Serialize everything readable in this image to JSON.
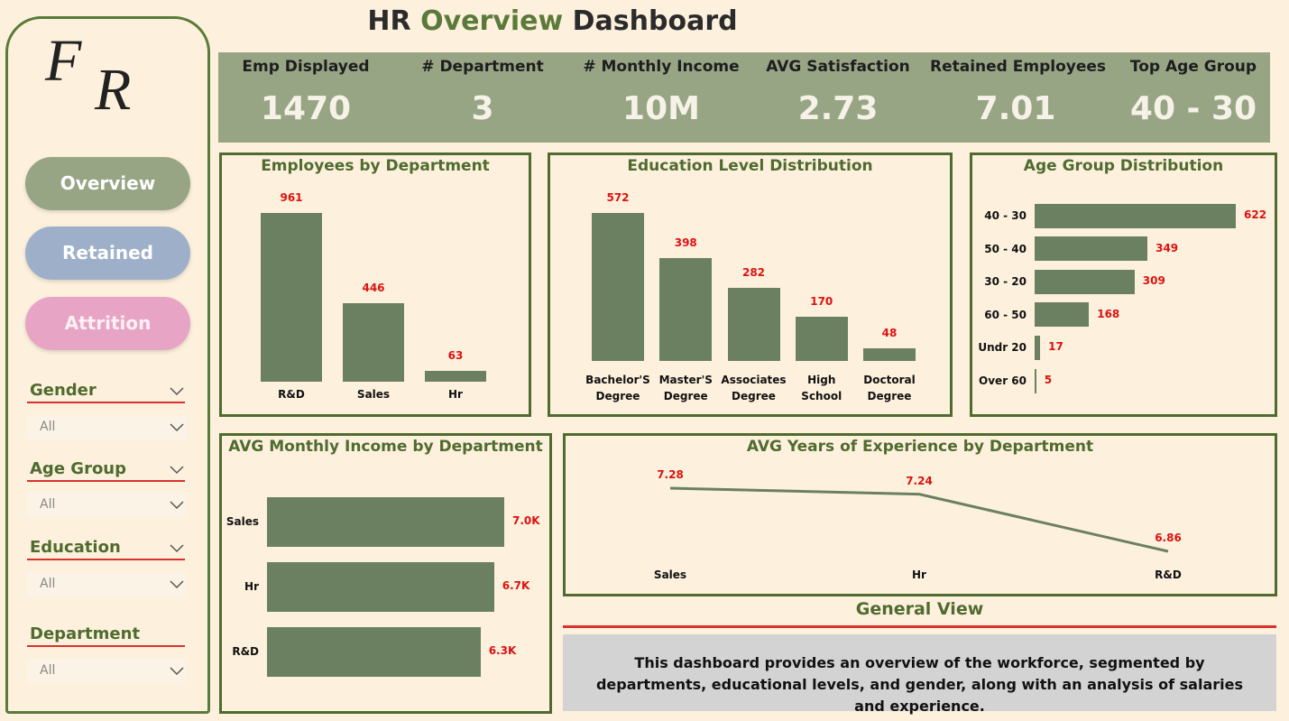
{
  "header": {
    "title_parts": [
      "HR",
      "Overview",
      "Dashboard"
    ]
  },
  "sidebar": {
    "logo": [
      "F",
      "R"
    ],
    "nav": [
      "Overview",
      "Retained",
      "Attrition"
    ],
    "filters": [
      {
        "label": "Gender",
        "selected": "All"
      },
      {
        "label": "Age Group",
        "selected": "All"
      },
      {
        "label": "Education",
        "selected": "All"
      },
      {
        "label": "Department",
        "selected": "All"
      }
    ]
  },
  "kpis": [
    {
      "label": "Emp Displayed",
      "value": 1470
    },
    {
      "label": "# Department",
      "value": 3
    },
    {
      "label": "# Monthly Income",
      "value": "10M"
    },
    {
      "label": "AVG Satisfaction",
      "value": 2.73
    },
    {
      "label": "Retained Employees",
      "value": 7.01
    },
    {
      "label": "Top Age Group",
      "value": "40 - 30"
    }
  ],
  "chart_data": [
    {
      "type": "bar",
      "title": "Employees by Department",
      "categories": [
        "R&D",
        "Sales",
        "Hr"
      ],
      "values": [
        961,
        446,
        63
      ],
      "color": "#6b8060"
    },
    {
      "type": "bar",
      "title": "Education Level Distribution",
      "categories": [
        "Bachelor'S Degree",
        "Master'S Degree",
        "Associates Degree",
        "High School",
        "Doctoral Degree"
      ],
      "values": [
        572,
        398,
        282,
        170,
        48
      ],
      "color": "#6b8060"
    },
    {
      "type": "hbar",
      "title": "Age Group Distribution",
      "categories": [
        "40 - 30",
        "50 - 40",
        "30 - 20",
        "60 - 50",
        "Undr 20",
        "Over 60"
      ],
      "values": [
        622,
        349,
        309,
        168,
        17,
        5
      ],
      "color": "#6b8060"
    },
    {
      "type": "hbar",
      "title": "AVG Monthly Income by Department",
      "categories": [
        "Sales",
        "Hr",
        "R&D"
      ],
      "values": [
        7000,
        6700,
        6300
      ],
      "value_labels": [
        "7.0K",
        "6.7K",
        "6.3K"
      ],
      "color": "#6b8060"
    },
    {
      "type": "line",
      "title": "AVG Years of Experience by Department",
      "categories": [
        "Sales",
        "Hr",
        "R&D"
      ],
      "values": [
        7.28,
        7.24,
        6.86
      ],
      "color": "#6b8060"
    }
  ],
  "general_view": {
    "title": "General View",
    "text": "This dashboard provides an overview of the workforce, segmented by departments, educational levels, and gender, along with an analysis of salaries and experience."
  }
}
